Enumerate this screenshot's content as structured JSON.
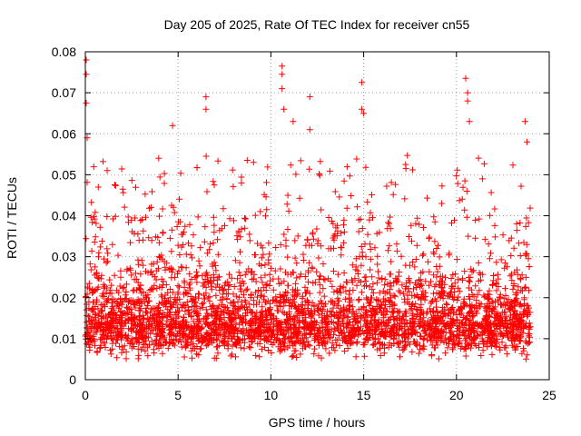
{
  "chart_data": {
    "type": "scatter",
    "title": "Day 205 of 2025, Rate Of TEC Index for receiver cn55",
    "xlabel": "GPS time / hours",
    "ylabel": "ROTI / TECUs",
    "xlim": [
      0,
      25
    ],
    "ylim": [
      0,
      0.08
    ],
    "xticks": [
      0,
      5,
      10,
      15,
      20,
      25
    ],
    "xtick_labels": [
      "0",
      "5",
      "10",
      "15",
      "20",
      "25"
    ],
    "yticks": [
      0,
      0.01,
      0.02,
      0.03,
      0.04,
      0.05,
      0.06,
      0.07,
      0.08
    ],
    "ytick_labels": [
      "0",
      "0.01",
      "0.02",
      "0.03",
      "0.04",
      "0.05",
      "0.06",
      "0.07",
      "0.08"
    ],
    "grid": true,
    "marker": "plus",
    "marker_color": "#ff0000",
    "data_x_range": [
      0,
      24
    ],
    "bulk_range": [
      0.005,
      0.04
    ],
    "notable_points": [
      {
        "x": 0.05,
        "y": 0.078
      },
      {
        "x": 0.05,
        "y": 0.0745
      },
      {
        "x": 0.05,
        "y": 0.0675
      },
      {
        "x": 0.1,
        "y": 0.059
      },
      {
        "x": 4.7,
        "y": 0.062
      },
      {
        "x": 6.5,
        "y": 0.069
      },
      {
        "x": 6.5,
        "y": 0.066
      },
      {
        "x": 10.6,
        "y": 0.0765
      },
      {
        "x": 10.6,
        "y": 0.0745
      },
      {
        "x": 10.6,
        "y": 0.071
      },
      {
        "x": 10.7,
        "y": 0.066
      },
      {
        "x": 11.2,
        "y": 0.063
      },
      {
        "x": 12.1,
        "y": 0.069
      },
      {
        "x": 12.1,
        "y": 0.061
      },
      {
        "x": 14.9,
        "y": 0.0725
      },
      {
        "x": 14.9,
        "y": 0.066
      },
      {
        "x": 15.0,
        "y": 0.065
      },
      {
        "x": 20.5,
        "y": 0.0735
      },
      {
        "x": 20.6,
        "y": 0.07
      },
      {
        "x": 20.6,
        "y": 0.068
      },
      {
        "x": 20.7,
        "y": 0.063
      },
      {
        "x": 23.7,
        "y": 0.063
      },
      {
        "x": 23.8,
        "y": 0.058
      }
    ]
  }
}
